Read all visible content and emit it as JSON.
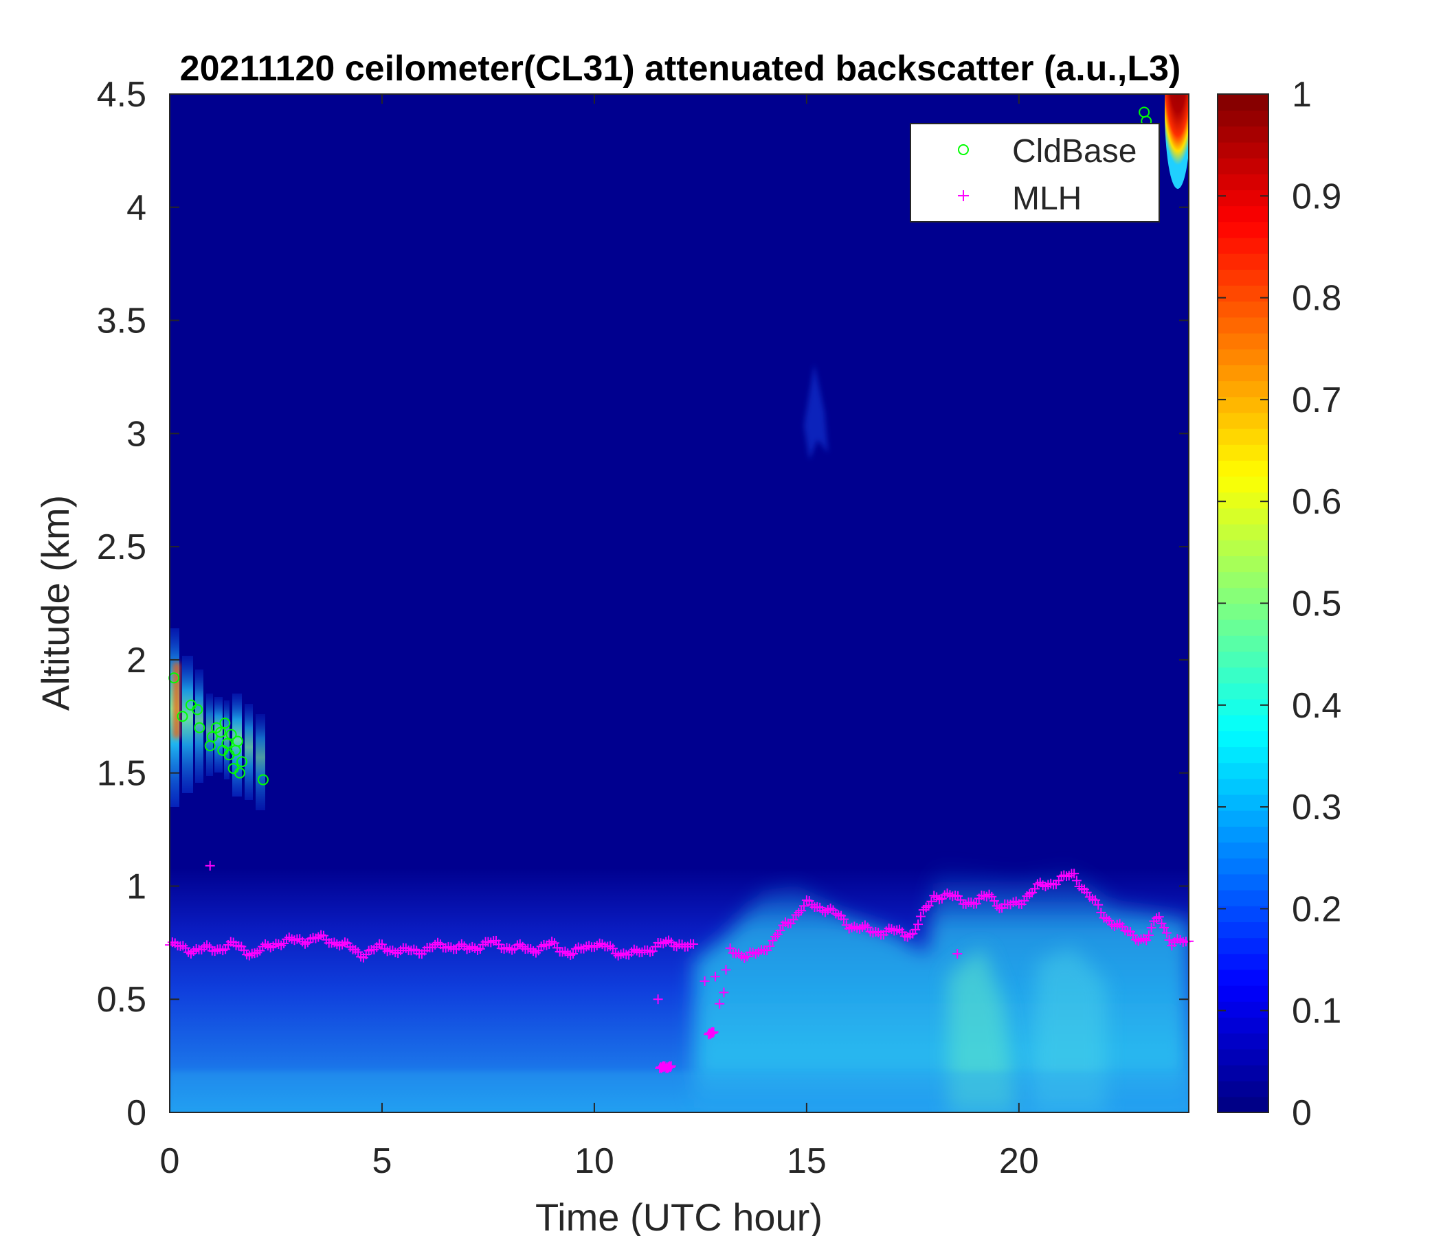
{
  "chart_data": {
    "type": "heatmap",
    "title": "20211120 ceilometer(CL31) attenuated backscatter (a.u.,L3)",
    "xlabel": "Time (UTC hour)",
    "ylabel": "Altitude (km)",
    "xlim": [
      0,
      24
    ],
    "ylim": [
      0,
      4.5
    ],
    "xticks": [
      0,
      5,
      10,
      15,
      20
    ],
    "yticks": [
      0,
      0.5,
      1,
      1.5,
      2,
      2.5,
      3,
      3.5,
      4,
      4.5
    ],
    "colorbar": {
      "colormap": "jet",
      "range": [
        0,
        1
      ],
      "ticks": [
        0,
        0.1,
        0.2,
        0.3,
        0.4,
        0.5,
        0.6,
        0.7,
        0.8,
        0.9,
        1
      ]
    },
    "legend": {
      "placement": "top-right",
      "entries": [
        {
          "name": "CldBase",
          "marker": "circle",
          "color": "#00ff00"
        },
        {
          "name": "MLH",
          "marker": "plus",
          "color": "#ff00ff"
        }
      ]
    },
    "series": [
      {
        "name": "CldBase",
        "points": [
          [
            0.1,
            1.92
          ],
          [
            0.3,
            1.75
          ],
          [
            0.5,
            1.8
          ],
          [
            0.65,
            1.78
          ],
          [
            0.7,
            1.7
          ],
          [
            0.95,
            1.62
          ],
          [
            1.0,
            1.66
          ],
          [
            1.1,
            1.7
          ],
          [
            1.2,
            1.68
          ],
          [
            1.25,
            1.6
          ],
          [
            1.3,
            1.72
          ],
          [
            1.35,
            1.63
          ],
          [
            1.4,
            1.58
          ],
          [
            1.45,
            1.67
          ],
          [
            1.5,
            1.52
          ],
          [
            1.55,
            1.6
          ],
          [
            1.6,
            1.64
          ],
          [
            1.65,
            1.5
          ],
          [
            1.7,
            1.55
          ],
          [
            2.2,
            1.47
          ],
          [
            22.95,
            4.42
          ],
          [
            23.0,
            4.38
          ]
        ]
      },
      {
        "name": "MLH",
        "points": [
          [
            0,
            0.74
          ],
          [
            0.5,
            0.72
          ],
          [
            1,
            0.72
          ],
          [
            1.5,
            0.74
          ],
          [
            2,
            0.7
          ],
          [
            2.5,
            0.75
          ],
          [
            3,
            0.76
          ],
          [
            3.5,
            0.77
          ],
          [
            4,
            0.75
          ],
          [
            4.5,
            0.7
          ],
          [
            5,
            0.73
          ],
          [
            5.5,
            0.71
          ],
          [
            6,
            0.72
          ],
          [
            6.5,
            0.74
          ],
          [
            7,
            0.72
          ],
          [
            7.5,
            0.75
          ],
          [
            8,
            0.73
          ],
          [
            8.5,
            0.72
          ],
          [
            9,
            0.74
          ],
          [
            9.5,
            0.7
          ],
          [
            10,
            0.75
          ],
          [
            10.5,
            0.71
          ],
          [
            11,
            0.7
          ],
          [
            11.5,
            0.74
          ],
          [
            12,
            0.75
          ],
          [
            12.4,
            0.72
          ],
          [
            13.2,
            0.73
          ],
          [
            13.6,
            0.68
          ],
          [
            14.2,
            0.75
          ],
          [
            14.5,
            0.83
          ],
          [
            15,
            0.92
          ],
          [
            15.5,
            0.9
          ],
          [
            16,
            0.83
          ],
          [
            16.5,
            0.8
          ],
          [
            17,
            0.8
          ],
          [
            17.5,
            0.79
          ],
          [
            18,
            0.96
          ],
          [
            18.5,
            0.95
          ],
          [
            19,
            0.92
          ],
          [
            19.3,
            0.97
          ],
          [
            19.6,
            0.9
          ],
          [
            20,
            0.93
          ],
          [
            20.5,
            1.0
          ],
          [
            21,
            1.03
          ],
          [
            21.3,
            1.05
          ],
          [
            21.6,
            0.97
          ],
          [
            22,
            0.87
          ],
          [
            22.5,
            0.8
          ],
          [
            23,
            0.76
          ],
          [
            23.3,
            0.87
          ],
          [
            23.6,
            0.75
          ],
          [
            24,
            0.75
          ],
          [
            0.95,
            1.09
          ],
          [
            11.5,
            0.5
          ],
          [
            11.6,
            0.2
          ],
          [
            11.75,
            0.2
          ],
          [
            12.6,
            0.58
          ],
          [
            12.75,
            0.35
          ],
          [
            12.85,
            0.6
          ],
          [
            12.95,
            0.48
          ],
          [
            13.05,
            0.53
          ],
          [
            13.1,
            0.63
          ]
        ]
      }
    ]
  }
}
